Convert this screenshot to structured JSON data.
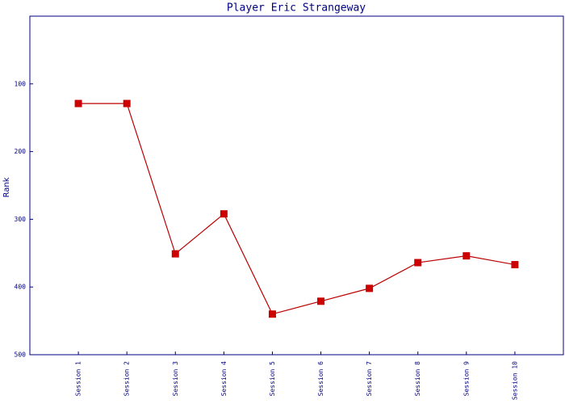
{
  "chart_data": {
    "type": "line",
    "title": "Player Eric Strangeway",
    "y_label": "Rank",
    "categories": [
      "Session 1",
      "Session 2",
      "Session 3",
      "Session 4",
      "Session 5",
      "Session 6",
      "Session 7",
      "Session 8",
      "Session 9",
      "Session 10"
    ],
    "values": [
      129,
      129,
      351,
      292,
      440,
      421,
      402,
      364,
      354,
      367
    ],
    "color": "#bb0000",
    "marker_color": "#cc0000",
    "axis_color": "#000080",
    "ylim": [
      0,
      500
    ],
    "yticks": [
      100,
      200,
      300,
      400,
      500
    ],
    "y_reversed": true,
    "grid": false
  }
}
